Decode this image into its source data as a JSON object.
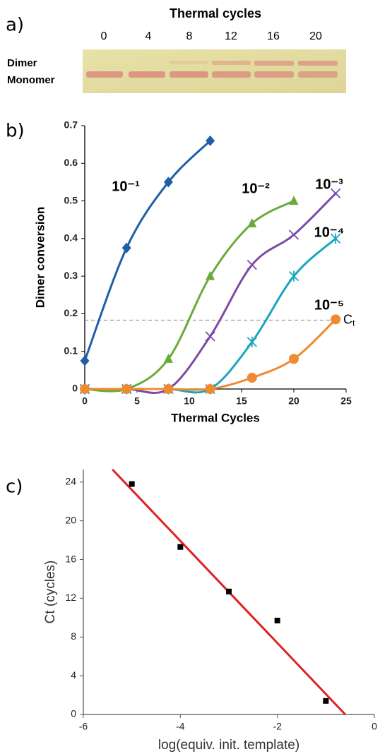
{
  "panel_labels": [
    "a)",
    "b)",
    "c)"
  ],
  "gel": {
    "title": "Thermal cycles",
    "lanes": [
      "0",
      "4",
      "8",
      "12",
      "16",
      "20"
    ],
    "rows": [
      "Dimer",
      "Monomer"
    ]
  },
  "chart_data": [
    {
      "type": "line",
      "x_label": "Thermal Cycles",
      "y_label": "Dimer conversion",
      "xlim": [
        0,
        25
      ],
      "xticks": [
        0,
        5,
        10,
        15,
        20,
        25
      ],
      "ylim": [
        0,
        0.7
      ],
      "yticks": [
        0,
        0.1,
        0.2,
        0.3,
        0.4,
        0.5,
        0.6,
        0.7
      ],
      "series": [
        {
          "name": "10⁻¹",
          "color": "#1f5fa8",
          "marker": "diamond",
          "x": [
            0,
            4,
            8,
            12
          ],
          "values": [
            0.075,
            0.375,
            0.55,
            0.66
          ]
        },
        {
          "name": "10⁻²",
          "color": "#6aaa3a",
          "marker": "triangle",
          "x": [
            0,
            4,
            8,
            12,
            16,
            20
          ],
          "values": [
            0,
            0,
            0.08,
            0.3,
            0.44,
            0.5
          ]
        },
        {
          "name": "10⁻³",
          "color": "#7d4aa6",
          "marker": "cross",
          "x": [
            0,
            4,
            8,
            12,
            16,
            20,
            24
          ],
          "values": [
            0,
            0,
            0,
            0.14,
            0.33,
            0.41,
            0.52
          ]
        },
        {
          "name": "10⁻⁴",
          "color": "#1aa5c0",
          "marker": "star",
          "x": [
            0,
            4,
            8,
            12,
            16,
            20,
            24
          ],
          "values": [
            0,
            0,
            0,
            0,
            0.125,
            0.3,
            0.4
          ]
        },
        {
          "name": "10⁻⁵",
          "color": "#f08a30",
          "marker": "circle",
          "x": [
            0,
            4,
            8,
            12,
            16,
            20,
            24
          ],
          "values": [
            0,
            0,
            0,
            0,
            0.03,
            0.08,
            0.185
          ]
        }
      ],
      "reference_line": {
        "y": 0.183,
        "label": "C",
        "label_subscript": "t",
        "color": "#999999"
      }
    },
    {
      "type": "scatter",
      "x_label": "log(equiv. init. template)",
      "y_label": "Ct (cycles)",
      "xlim": [
        -6,
        0
      ],
      "xticks": [
        -6,
        -4,
        -2,
        0
      ],
      "ylim": [
        0,
        25.3
      ],
      "yticks": [
        0,
        4,
        8,
        12,
        16,
        20,
        24
      ],
      "points": {
        "color": "#000000",
        "x": [
          -5,
          -4,
          -3,
          -2,
          -1
        ],
        "values": [
          23.8,
          17.3,
          12.7,
          9.7,
          1.4
        ]
      },
      "fit": {
        "color": "#e02020",
        "x": [
          -5.4,
          -0.6
        ],
        "values": [
          25.3,
          0
        ]
      }
    }
  ]
}
